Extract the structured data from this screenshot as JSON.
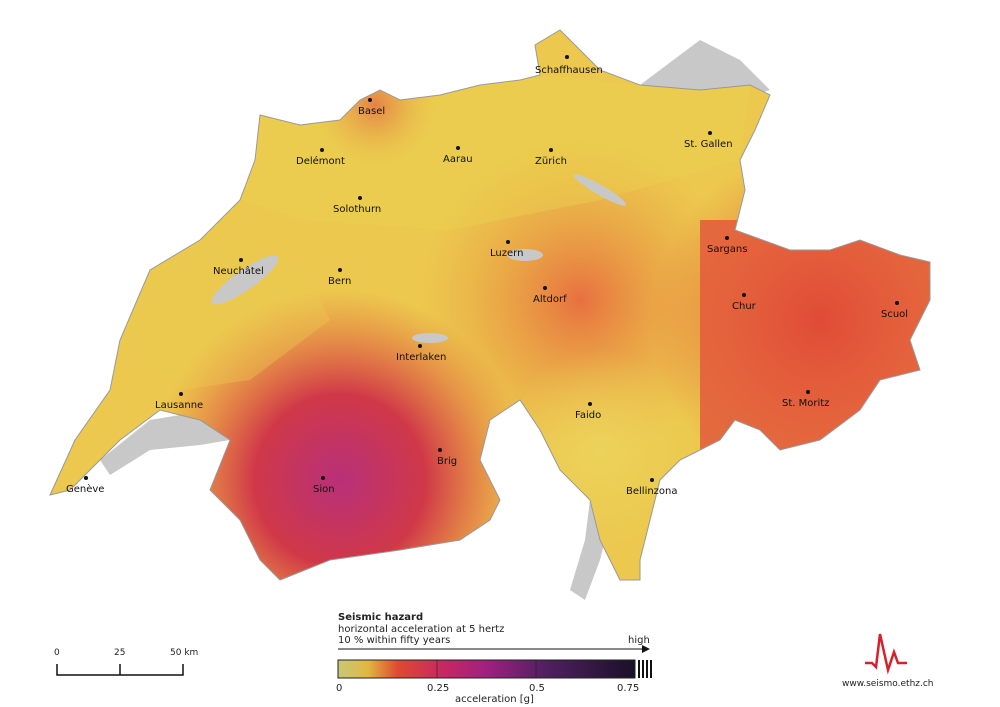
{
  "map": {
    "cities": [
      {
        "name": "Schaffhausen"
      },
      {
        "name": "Basel"
      },
      {
        "name": "Delémont"
      },
      {
        "name": "Aarau"
      },
      {
        "name": "Zürich"
      },
      {
        "name": "St. Gallen"
      },
      {
        "name": "Solothurn"
      },
      {
        "name": "Neuchâtel"
      },
      {
        "name": "Bern"
      },
      {
        "name": "Luzern"
      },
      {
        "name": "Sargans"
      },
      {
        "name": "Altdorf"
      },
      {
        "name": "Chur"
      },
      {
        "name": "Scuol"
      },
      {
        "name": "Interlaken"
      },
      {
        "name": "Lausanne"
      },
      {
        "name": "Faido"
      },
      {
        "name": "St. Moritz"
      },
      {
        "name": "Brig"
      },
      {
        "name": "Sion"
      },
      {
        "name": "Genève"
      },
      {
        "name": "Bellinzona"
      }
    ],
    "colors": {
      "low": "#e8d25a",
      "mid": "#e8603a",
      "high": "#b8305a",
      "lake": "#c8c8c8"
    }
  },
  "legend": {
    "title": "Seismic hazard",
    "line1": "horizontal acceleration at 5 hertz",
    "line2": "10 % within fifty years",
    "high_label": "high",
    "ticks": [
      "0",
      "0.25",
      "0.5",
      "0.75"
    ],
    "axis_label": "acceleration [g]",
    "colors": [
      "#c8c87a",
      "#e0c040",
      "#e04030",
      "#c02860",
      "#902080",
      "#402058",
      "#201028"
    ]
  },
  "scalebar": {
    "ticks": [
      "0",
      "25",
      "50 km"
    ]
  },
  "logo": {
    "url": "www.seismo.ethz.ch",
    "color": "#d8202a"
  }
}
